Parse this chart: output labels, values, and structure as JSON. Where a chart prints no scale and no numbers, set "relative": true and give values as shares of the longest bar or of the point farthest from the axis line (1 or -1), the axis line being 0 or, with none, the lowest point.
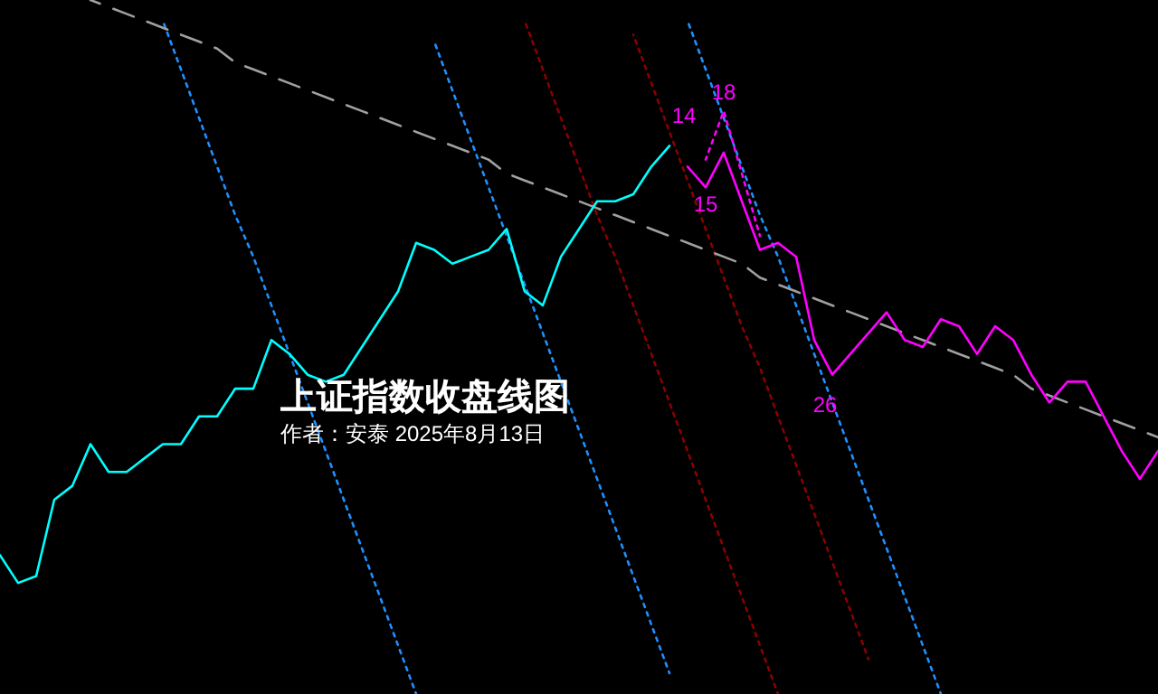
{
  "chart_data": {
    "type": "line",
    "title": "上证指数收盘线图",
    "subtitle": "作者：安泰 2025年8月13日",
    "relative": true,
    "annotations": [
      "14",
      "18",
      "15",
      "26"
    ],
    "categories": [
      null,
      null,
      null,
      null,
      null,
      null,
      null,
      null,
      null,
      null,
      null,
      null,
      null,
      null,
      null,
      null,
      null,
      null,
      null,
      null,
      null,
      null,
      null,
      null,
      null,
      null,
      null,
      null,
      null,
      null,
      null,
      null,
      null,
      null,
      null,
      null,
      null,
      null,
      null,
      null,
      null,
      null,
      null,
      null,
      null,
      null,
      null,
      null,
      null,
      null,
      null,
      null,
      null,
      null,
      null,
      null,
      null,
      null,
      null,
      null,
      null,
      null,
      null,
      null,
      null
    ],
    "series": [
      {
        "color": "#1e90ff",
        "line_style": "dotted",
        "values": [
          null,
          null,
          null,
          null,
          null,
          null,
          null,
          null,
          null,
          0.97,
          0.9,
          0.83,
          0.76,
          0.69,
          0.63,
          0.56,
          0.49,
          0.42,
          0.35,
          0.28,
          0.21,
          0.14,
          0.07,
          0.0,
          null,
          null,
          null,
          null,
          null,
          null,
          null,
          null,
          null,
          null,
          null,
          null,
          null,
          null,
          null,
          null,
          null,
          null,
          null,
          null,
          null,
          null,
          null,
          null,
          null,
          null,
          null,
          null,
          null,
          null,
          null,
          null,
          null,
          null,
          null,
          null,
          null,
          null,
          null,
          null,
          null
        ]
      },
      {
        "color": "#1e90ff",
        "line_style": "dotted",
        "values": [
          null,
          null,
          null,
          null,
          null,
          null,
          null,
          null,
          null,
          null,
          null,
          null,
          null,
          null,
          null,
          null,
          null,
          null,
          null,
          null,
          null,
          null,
          null,
          null,
          0.94,
          0.87,
          0.8,
          0.73,
          0.66,
          0.59,
          0.52,
          0.45,
          0.38,
          0.31,
          0.24,
          0.17,
          0.1,
          0.03,
          null,
          null,
          null,
          null,
          null,
          null,
          null,
          null,
          null,
          null,
          null,
          null,
          null,
          null,
          null,
          null,
          null,
          null,
          null,
          null,
          null,
          null,
          null,
          null,
          null,
          null,
          null
        ]
      },
      {
        "color": "#8b0000",
        "line_style": "dotted",
        "values": [
          null,
          null,
          null,
          null,
          null,
          null,
          null,
          null,
          null,
          null,
          null,
          null,
          null,
          null,
          null,
          null,
          null,
          null,
          null,
          null,
          null,
          null,
          null,
          null,
          null,
          null,
          null,
          null,
          null,
          0.97,
          0.9,
          0.83,
          0.76,
          0.69,
          0.63,
          0.56,
          0.49,
          0.42,
          0.35,
          0.28,
          0.21,
          0.14,
          0.07,
          0.0,
          null,
          null,
          null,
          null,
          null,
          null,
          null,
          null,
          null,
          null,
          null,
          null,
          null,
          null,
          null,
          null,
          null,
          null,
          null,
          null,
          null
        ]
      },
      {
        "color": "#8b0000",
        "line_style": "dotted",
        "values": [
          null,
          null,
          null,
          null,
          null,
          null,
          null,
          null,
          null,
          null,
          null,
          null,
          null,
          null,
          null,
          null,
          null,
          null,
          null,
          null,
          null,
          null,
          null,
          null,
          null,
          null,
          null,
          null,
          null,
          null,
          null,
          null,
          null,
          null,
          null,
          0.95,
          0.88,
          0.81,
          0.74,
          0.67,
          0.6,
          0.53,
          0.47,
          0.4,
          0.33,
          0.26,
          0.19,
          0.12,
          0.05,
          null,
          null,
          null,
          null,
          null,
          null,
          null,
          null,
          null,
          null,
          null,
          null,
          null,
          null,
          null,
          null
        ]
      },
      {
        "color": "#1e90ff",
        "line_style": "dotted",
        "values": [
          null,
          null,
          null,
          null,
          null,
          null,
          null,
          null,
          null,
          null,
          null,
          null,
          null,
          null,
          null,
          null,
          null,
          null,
          null,
          null,
          null,
          null,
          null,
          null,
          null,
          null,
          null,
          null,
          null,
          null,
          null,
          null,
          null,
          null,
          null,
          null,
          null,
          null,
          0.97,
          0.9,
          0.83,
          0.76,
          0.69,
          0.63,
          0.56,
          0.49,
          0.42,
          0.35,
          0.28,
          0.21,
          0.14,
          0.07,
          0.0,
          null,
          null,
          null,
          null,
          null,
          null,
          null,
          null,
          null,
          null,
          null,
          null
        ]
      },
      {
        "color": "#a0a0a0",
        "line_style": "dashed",
        "values": [
          null,
          null,
          null,
          null,
          null,
          1.0,
          0.99,
          0.98,
          0.97,
          0.96,
          0.95,
          0.94,
          0.93,
          0.91,
          0.9,
          0.89,
          0.88,
          0.87,
          0.86,
          0.85,
          0.84,
          0.83,
          0.82,
          0.81,
          0.8,
          0.79,
          0.78,
          0.77,
          0.75,
          0.74,
          0.73,
          0.72,
          0.71,
          0.7,
          0.69,
          0.68,
          0.67,
          0.66,
          0.65,
          0.64,
          0.63,
          0.62,
          0.6,
          0.59,
          0.58,
          0.57,
          0.56,
          0.55,
          0.54,
          0.53,
          0.52,
          0.51,
          0.5,
          0.49,
          0.48,
          0.47,
          0.46,
          0.44,
          0.43,
          0.42,
          0.41,
          0.4,
          0.39,
          0.38,
          0.37
        ]
      },
      {
        "color": "#ff00ff",
        "line_style": "dotted",
        "values": [
          null,
          null,
          null,
          null,
          null,
          null,
          null,
          null,
          null,
          null,
          null,
          null,
          null,
          null,
          null,
          null,
          null,
          null,
          null,
          null,
          null,
          null,
          null,
          null,
          null,
          null,
          null,
          null,
          null,
          null,
          null,
          null,
          null,
          null,
          null,
          null,
          null,
          null,
          null,
          0.77,
          0.84,
          0.75,
          0.66,
          null,
          null,
          null,
          null,
          null,
          null,
          null,
          null,
          null,
          null,
          null,
          null,
          null,
          null,
          null,
          null,
          null,
          null,
          null,
          null,
          null,
          null
        ]
      },
      {
        "color": "#ff00ff",
        "line_style": "solid",
        "values": [
          null,
          null,
          null,
          null,
          null,
          null,
          null,
          null,
          null,
          null,
          null,
          null,
          null,
          null,
          null,
          null,
          null,
          null,
          null,
          null,
          null,
          null,
          null,
          null,
          null,
          null,
          null,
          null,
          null,
          null,
          null,
          null,
          null,
          null,
          null,
          null,
          null,
          null,
          0.76,
          0.73,
          0.78,
          0.71,
          0.64,
          0.65,
          0.63,
          0.51,
          0.46,
          0.49,
          0.52,
          0.55,
          0.51,
          0.5,
          0.54,
          0.53,
          0.49,
          0.53,
          0.51,
          0.46,
          0.42,
          0.45,
          0.45,
          0.4,
          0.35,
          0.31,
          0.35
        ]
      },
      {
        "color": "#00ffff",
        "line_style": "solid",
        "values": [
          0.2,
          0.16,
          0.17,
          0.28,
          0.3,
          0.36,
          0.32,
          0.32,
          0.34,
          0.36,
          0.36,
          0.4,
          0.4,
          0.44,
          0.44,
          0.51,
          0.49,
          0.46,
          0.45,
          0.46,
          0.5,
          0.54,
          0.58,
          0.65,
          0.64,
          0.62,
          0.63,
          0.64,
          0.67,
          0.58,
          0.56,
          0.63,
          0.67,
          0.71,
          0.71,
          0.72,
          0.76,
          0.79,
          null,
          null,
          null,
          null,
          null,
          null,
          null,
          null,
          null,
          null,
          null,
          null,
          null,
          null,
          null,
          null,
          null,
          null,
          null,
          null,
          null,
          null,
          null,
          null,
          null,
          null,
          null
        ]
      }
    ]
  }
}
